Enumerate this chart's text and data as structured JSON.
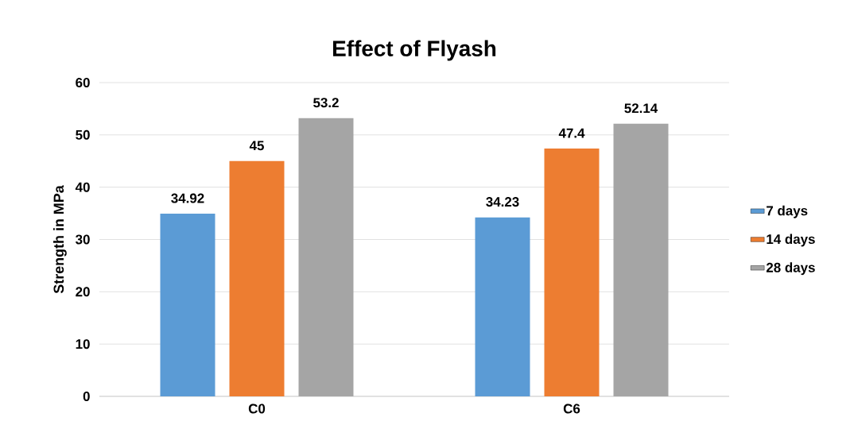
{
  "chart_data": {
    "type": "bar",
    "title": "Effect of Flyash",
    "ylabel": "Strength in MPa",
    "categories": [
      "C0",
      "C6"
    ],
    "series": [
      {
        "name": "7 days",
        "color": "#5b9bd5",
        "values": [
          34.92,
          34.23
        ]
      },
      {
        "name": "14 days",
        "color": "#ed7d31",
        "values": [
          45,
          47.4
        ]
      },
      {
        "name": "28 days",
        "color": "#a5a5a5",
        "values": [
          53.2,
          52.14
        ]
      }
    ],
    "ylim": [
      0,
      60
    ],
    "yticks": [
      0,
      10,
      20,
      30,
      40,
      50,
      60
    ],
    "grid": "y",
    "legend": "right",
    "data_labels": true
  }
}
